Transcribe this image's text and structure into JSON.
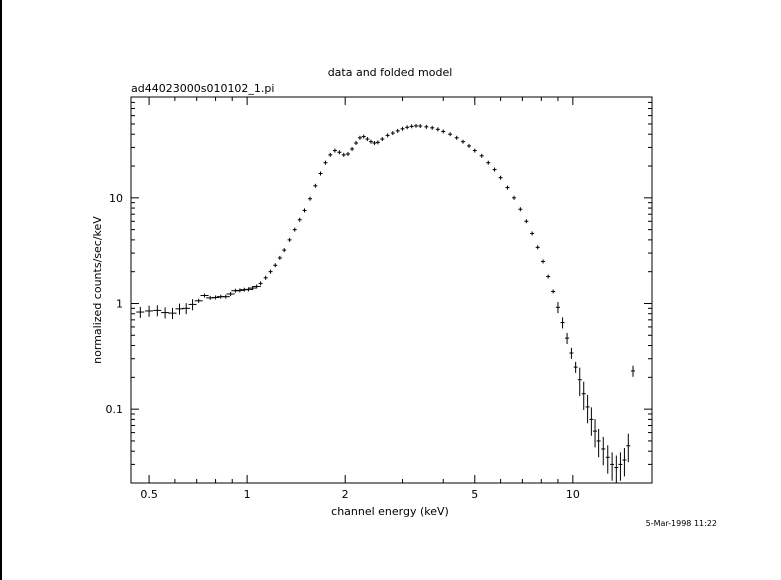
{
  "chart_data": {
    "type": "scatter",
    "title": "data and folded model",
    "subtitle": "ad44023000s010102_1.pi",
    "xlabel": "channel energy (keV)",
    "ylabel": "normalized counts/sec/keV",
    "timestamp": "5-Mar-1998 11:22",
    "xscale": "log",
    "yscale": "log",
    "xlim": [
      0.44,
      17.5
    ],
    "ylim": [
      0.02,
      90
    ],
    "x_ticks": [
      {
        "value": 0.5,
        "label": "0.5"
      },
      {
        "value": 1,
        "label": "1"
      },
      {
        "value": 2,
        "label": "2"
      },
      {
        "value": 5,
        "label": "5"
      },
      {
        "value": 10,
        "label": "10"
      }
    ],
    "y_ticks": [
      {
        "value": 0.1,
        "label": "0.1"
      },
      {
        "value": 1,
        "label": "1"
      },
      {
        "value": 10,
        "label": "10"
      }
    ],
    "grid": false,
    "series": [
      {
        "points": [
          [
            0.47,
            0.83
          ],
          [
            0.5,
            0.85
          ],
          [
            0.53,
            0.86
          ],
          [
            0.56,
            0.82
          ],
          [
            0.59,
            0.81
          ],
          [
            0.62,
            0.89
          ],
          [
            0.65,
            0.9
          ],
          [
            0.68,
            0.98
          ],
          [
            0.71,
            1.06
          ],
          [
            0.74,
            1.19
          ],
          [
            0.77,
            1.13
          ],
          [
            0.8,
            1.14
          ],
          [
            0.83,
            1.16
          ],
          [
            0.86,
            1.16
          ],
          [
            0.89,
            1.23
          ],
          [
            0.92,
            1.32
          ],
          [
            0.95,
            1.33
          ],
          [
            0.98,
            1.35
          ],
          [
            1.01,
            1.36
          ],
          [
            1.04,
            1.4
          ],
          [
            1.07,
            1.45
          ],
          [
            1.1,
            1.55
          ],
          [
            1.14,
            1.75
          ],
          [
            1.18,
            2.0
          ],
          [
            1.22,
            2.3
          ],
          [
            1.26,
            2.7
          ],
          [
            1.3,
            3.2
          ],
          [
            1.35,
            4.0
          ],
          [
            1.4,
            5.0
          ],
          [
            1.45,
            6.2
          ],
          [
            1.5,
            7.6
          ],
          [
            1.56,
            9.8
          ],
          [
            1.62,
            13.0
          ],
          [
            1.68,
            17.0
          ],
          [
            1.74,
            21.5
          ],
          [
            1.8,
            25.5
          ],
          [
            1.86,
            28.0
          ],
          [
            1.92,
            27.0
          ],
          [
            1.98,
            25.5
          ],
          [
            2.04,
            26.0
          ],
          [
            2.1,
            29.0
          ],
          [
            2.16,
            33.0
          ],
          [
            2.22,
            37.0
          ],
          [
            2.28,
            38.0
          ],
          [
            2.34,
            36.0
          ],
          [
            2.4,
            34.0
          ],
          [
            2.46,
            33.0
          ],
          [
            2.52,
            33.5
          ],
          [
            2.6,
            36.0
          ],
          [
            2.7,
            39.0
          ],
          [
            2.8,
            41.0
          ],
          [
            2.9,
            43.0
          ],
          [
            3.0,
            45.0
          ],
          [
            3.1,
            46.5
          ],
          [
            3.2,
            47.5
          ],
          [
            3.3,
            48.0
          ],
          [
            3.4,
            47.8
          ],
          [
            3.55,
            47.0
          ],
          [
            3.7,
            46.0
          ],
          [
            3.85,
            44.5
          ],
          [
            4.0,
            42.5
          ],
          [
            4.2,
            40.0
          ],
          [
            4.4,
            37.0
          ],
          [
            4.6,
            34.0
          ],
          [
            4.8,
            31.0
          ],
          [
            5.0,
            28.0
          ],
          [
            5.25,
            25.0
          ],
          [
            5.5,
            21.5
          ],
          [
            5.75,
            18.5
          ],
          [
            6.0,
            15.5
          ],
          [
            6.3,
            12.5
          ],
          [
            6.6,
            10.0
          ],
          [
            6.9,
            7.8
          ],
          [
            7.2,
            6.0
          ],
          [
            7.5,
            4.6
          ],
          [
            7.8,
            3.4
          ],
          [
            8.1,
            2.5
          ],
          [
            8.4,
            1.8
          ],
          [
            8.7,
            1.3
          ],
          [
            9.0,
            0.92
          ],
          [
            9.3,
            0.66
          ],
          [
            9.6,
            0.47
          ],
          [
            9.9,
            0.34
          ],
          [
            10.2,
            0.25
          ],
          [
            10.5,
            0.19
          ],
          [
            10.8,
            0.14
          ],
          [
            11.1,
            0.105
          ],
          [
            11.4,
            0.08
          ],
          [
            11.7,
            0.062
          ],
          [
            12.0,
            0.05
          ],
          [
            12.4,
            0.042
          ],
          [
            12.8,
            0.035
          ],
          [
            13.2,
            0.03
          ],
          [
            13.6,
            0.028
          ],
          [
            14.0,
            0.03
          ],
          [
            14.4,
            0.033
          ],
          [
            14.8,
            0.045
          ],
          [
            15.3,
            0.23
          ]
        ]
      }
    ]
  }
}
